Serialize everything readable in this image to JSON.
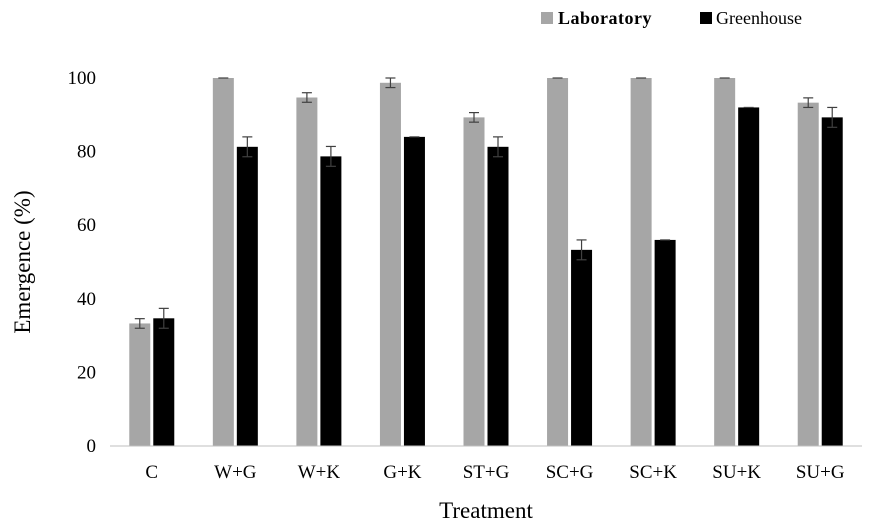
{
  "chart_data": {
    "type": "bar",
    "title": "",
    "xlabel": "Treatment",
    "ylabel": "Emergence (%)",
    "ylim": [
      0,
      100
    ],
    "yticks": [
      0,
      20,
      40,
      60,
      80,
      100
    ],
    "grid": false,
    "legend_position": "top-right",
    "categories": [
      "C",
      "W+G",
      "W+K",
      "G+K",
      "ST+G",
      "SC+G",
      "SC+K",
      "SU+K",
      "SU+G"
    ],
    "series": [
      {
        "name": "Laboratory",
        "color": "#a6a6a6",
        "values": [
          33.3,
          100,
          94.7,
          98.7,
          89.3,
          100,
          100,
          100,
          93.3
        ],
        "errors": [
          1.3,
          0,
          1.3,
          1.3,
          1.3,
          0,
          0,
          0,
          1.3
        ]
      },
      {
        "name": "Greenhouse",
        "color": "#000000",
        "values": [
          34.7,
          81.3,
          78.7,
          84,
          81.3,
          53.3,
          56,
          92,
          89.3
        ],
        "errors": [
          2.7,
          2.7,
          2.7,
          0,
          2.7,
          2.7,
          0,
          0,
          2.7
        ]
      }
    ]
  }
}
